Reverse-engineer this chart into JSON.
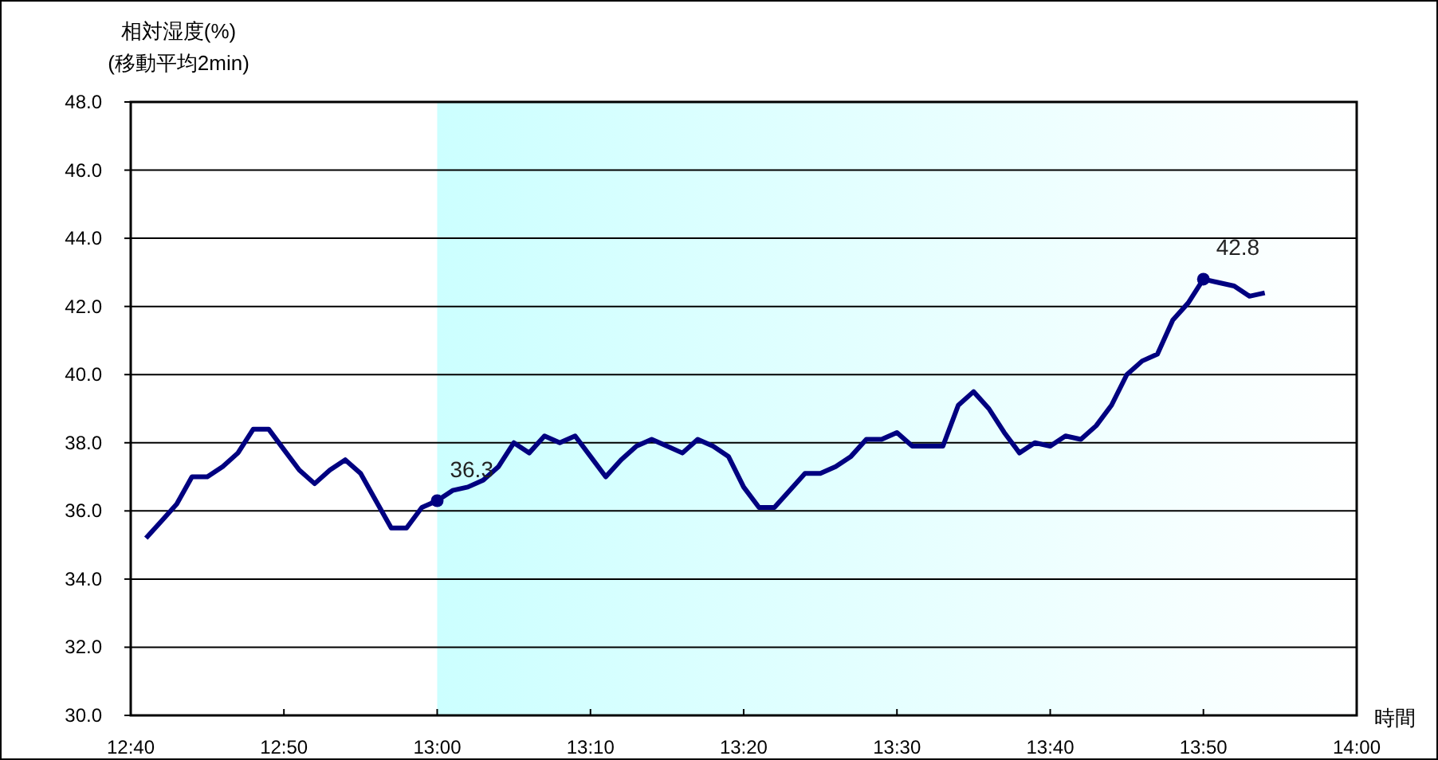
{
  "chart_data": {
    "type": "line",
    "ylabel": "相対湿度(%)\n(移動平均2min)",
    "xlabel": "時間",
    "x": [
      12.6833,
      12.7,
      12.7167,
      12.7333,
      12.75,
      12.7667,
      12.7833,
      12.8,
      12.8167,
      12.8333,
      12.85,
      12.8667,
      12.8833,
      12.9,
      12.9167,
      12.9333,
      12.95,
      12.9667,
      12.9833,
      13,
      13.0167,
      13.0333,
      13.05,
      13.0667,
      13.0833,
      13.1,
      13.1167,
      13.1333,
      13.15,
      13.1667,
      13.1833,
      13.2,
      13.2167,
      13.2333,
      13.25,
      13.2667,
      13.2833,
      13.3,
      13.3167,
      13.3333,
      13.35,
      13.3667,
      13.3833,
      13.4,
      13.4167,
      13.4333,
      13.45,
      13.4667,
      13.4833,
      13.5,
      13.5167,
      13.5333,
      13.55,
      13.5667,
      13.5833,
      13.6,
      13.6167,
      13.6333,
      13.65,
      13.6667,
      13.6833,
      13.7,
      13.7167,
      13.7333,
      13.75,
      13.7667,
      13.7833,
      13.8,
      13.8167,
      13.8333,
      13.85,
      13.8667,
      13.8833,
      13.9
    ],
    "series": [
      {
        "color": "#000080",
        "values": [
          35.2,
          35.7,
          36.2,
          37.0,
          37.0,
          37.3,
          37.7,
          38.4,
          38.4,
          37.8,
          37.2,
          36.8,
          37.2,
          37.5,
          37.1,
          36.3,
          35.5,
          35.5,
          36.1,
          36.3,
          36.6,
          36.7,
          36.9,
          37.3,
          38.0,
          37.7,
          38.2,
          38.0,
          38.2,
          37.6,
          37.0,
          37.5,
          37.9,
          38.1,
          37.9,
          37.7,
          38.1,
          37.9,
          37.6,
          36.7,
          36.1,
          36.1,
          36.6,
          37.1,
          37.1,
          37.3,
          37.6,
          38.1,
          38.1,
          38.3,
          37.9,
          37.9,
          37.9,
          39.1,
          39.5,
          39.0,
          38.3,
          37.7,
          38.0,
          37.9,
          38.2,
          38.1,
          38.5,
          39.1,
          40.0,
          40.4,
          40.6,
          41.6,
          42.1,
          42.8,
          42.7,
          42.6,
          42.3,
          42.4
        ]
      }
    ],
    "xlim": [
      12.6667,
      14
    ],
    "xticks": [
      {
        "value": 12.6667,
        "label": "12:40"
      },
      {
        "value": 12.8333,
        "label": "12:50"
      },
      {
        "value": 13,
        "label": "13:00"
      },
      {
        "value": 13.1667,
        "label": "13:10"
      },
      {
        "value": 13.3333,
        "label": "13:20"
      },
      {
        "value": 13.5,
        "label": "13:30"
      },
      {
        "value": 13.6667,
        "label": "13:40"
      },
      {
        "value": 13.8333,
        "label": "13:50"
      },
      {
        "value": 14,
        "label": "14:00"
      }
    ],
    "ylim": [
      30,
      48
    ],
    "yticks": [
      {
        "value": 30,
        "label": "30.0"
      },
      {
        "value": 32,
        "label": "32.0"
      },
      {
        "value": 34,
        "label": "34.0"
      },
      {
        "value": 36,
        "label": "36.0"
      },
      {
        "value": 38,
        "label": "38.0"
      },
      {
        "value": 40,
        "label": "40.0"
      },
      {
        "value": 42,
        "label": "42.0"
      },
      {
        "value": 44,
        "label": "44.0"
      },
      {
        "value": 46,
        "label": "46.0"
      },
      {
        "value": 48,
        "label": "48.0"
      }
    ],
    "grid": "y",
    "bands": [
      {
        "axis": "x",
        "from": 13,
        "to": 14,
        "color": "#ccffff"
      }
    ],
    "annotations": [
      {
        "text": "36.3",
        "x": 13,
        "y": 36.3
      },
      {
        "text": "42.8",
        "x": 13.8333,
        "y": 42.8
      }
    ]
  }
}
